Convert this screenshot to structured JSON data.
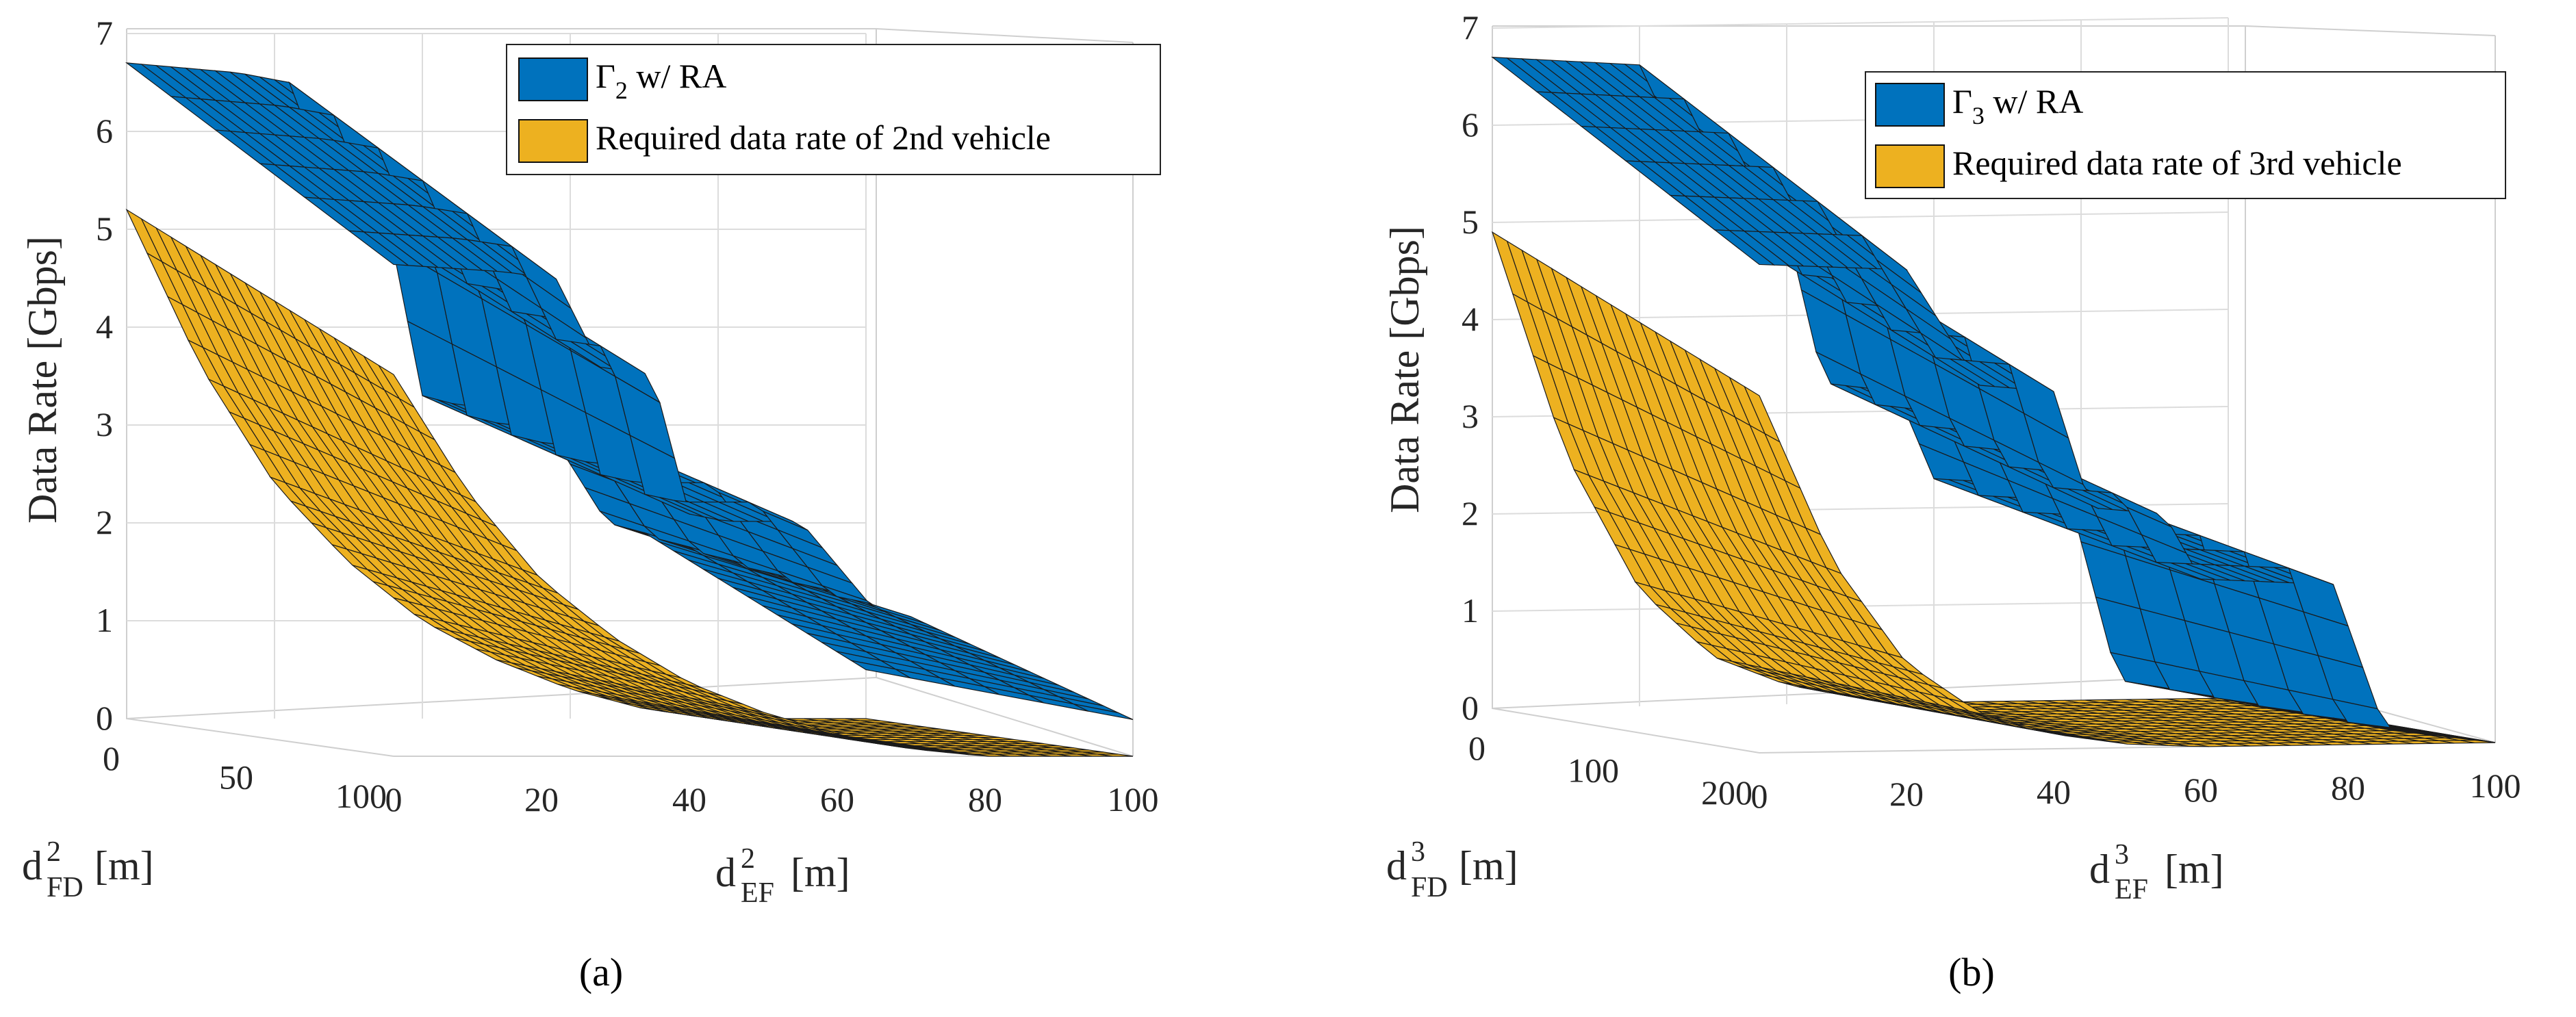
{
  "chart_data": [
    {
      "panel": "a",
      "type": "surface",
      "caption": "(a)",
      "zlabel": "Data Rate [Gbps]",
      "xlabel": {
        "base": "d",
        "sup": "2",
        "sub": "EF",
        "unit": "[m]"
      },
      "ylabel": {
        "base": "d",
        "sup": "2",
        "sub": "FD",
        "unit": "[m]"
      },
      "z_ticks": [
        "0",
        "1",
        "2",
        "3",
        "4",
        "5",
        "6",
        "7"
      ],
      "x_ticks": [
        "0",
        "20",
        "40",
        "60",
        "80",
        "100"
      ],
      "y_ticks": [
        "0",
        "50",
        "100"
      ],
      "xlim": [
        0,
        100
      ],
      "ylim": [
        0,
        100
      ],
      "zlim": [
        0,
        7
      ],
      "grid": true,
      "legend_position": "top-right",
      "series": [
        {
          "name_base": "Γ",
          "name_sub": "2",
          "name_rest": " w/ RA",
          "color": "#0072BD",
          "profile": [
            [
              0,
              6.7
            ],
            [
              15,
              6.6
            ],
            [
              22,
              6.5
            ],
            [
              28,
              5.3
            ],
            [
              35,
              5.2
            ],
            [
              40,
              3.3
            ],
            [
              45,
              3.2
            ],
            [
              55,
              3.2
            ],
            [
              65,
              2.0
            ],
            [
              70,
              1.9
            ],
            [
              100,
              0.5
            ]
          ]
        },
        {
          "name": "Required data rate of 2nd vehicle",
          "color": "#EDB120",
          "profile": [
            [
              0,
              5.2
            ],
            [
              10,
              3.6
            ],
            [
              20,
              2.4
            ],
            [
              30,
              1.6
            ],
            [
              40,
              1.0
            ],
            [
              50,
              0.6
            ],
            [
              60,
              0.3
            ],
            [
              70,
              0.1
            ],
            [
              80,
              0.0
            ],
            [
              100,
              0.0
            ]
          ]
        }
      ]
    },
    {
      "panel": "b",
      "type": "surface",
      "caption": "(b)",
      "zlabel": "Data Rate [Gbps]",
      "xlabel": {
        "base": "d",
        "sup": "3",
        "sub": "EF",
        "unit": "[m]"
      },
      "ylabel": {
        "base": "d",
        "sup": "3",
        "sub": "FD",
        "unit": "[m]"
      },
      "z_ticks": [
        "0",
        "1",
        "2",
        "3",
        "4",
        "5",
        "6",
        "7"
      ],
      "x_ticks": [
        "0",
        "20",
        "40",
        "60",
        "80",
        "100"
      ],
      "y_ticks": [
        "0",
        "100",
        "200"
      ],
      "xlim": [
        0,
        100
      ],
      "ylim": [
        0,
        200
      ],
      "zlim": [
        0,
        7
      ],
      "grid": true,
      "legend_position": "top-right",
      "series": [
        {
          "name_base": "Γ",
          "name_sub": "3",
          "name_rest": " w/ RA",
          "color": "#0072BD",
          "profile": [
            [
              0,
              6.7
            ],
            [
              20,
              6.6
            ],
            [
              30,
              5.0
            ],
            [
              40,
              4.9
            ],
            [
              45,
              3.3
            ],
            [
              55,
              3.2
            ],
            [
              60,
              2.3
            ],
            [
              78,
              2.2
            ],
            [
              85,
              0.2
            ],
            [
              100,
              0.0
            ]
          ]
        },
        {
          "name": "Required data rate of 3rd vehicle",
          "color": "#EDB120",
          "profile": [
            [
              0,
              4.9
            ],
            [
              10,
              2.6
            ],
            [
              20,
              1.2
            ],
            [
              30,
              0.5
            ],
            [
              40,
              0.2
            ],
            [
              50,
              0.05
            ],
            [
              60,
              0.0
            ],
            [
              100,
              0.0
            ]
          ]
        }
      ]
    }
  ]
}
